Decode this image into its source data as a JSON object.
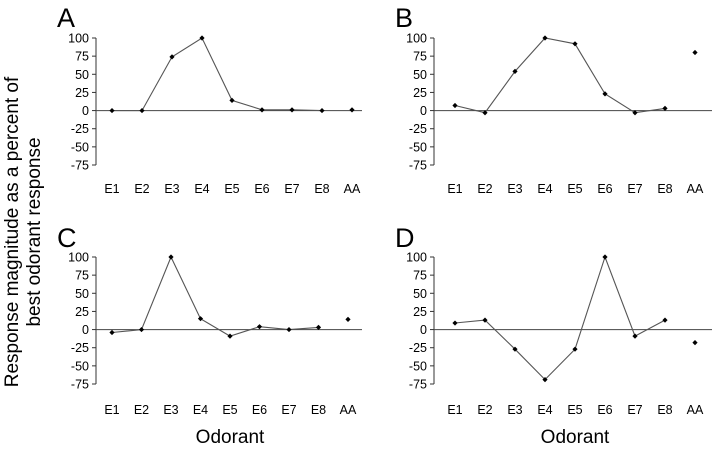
{
  "ylabel_lines": [
    "Response magnitude as a percent of",
    "best odorant response"
  ],
  "chart_data": [
    {
      "type": "line",
      "panel_label": "A",
      "categories": [
        "E1",
        "E2",
        "E3",
        "E4",
        "E5",
        "E6",
        "E7",
        "E8",
        "AA"
      ],
      "yticks": [
        100,
        75,
        50,
        25,
        0,
        -25,
        -50,
        -75
      ],
      "ylim": [
        -75,
        100
      ],
      "xlabel": "",
      "line_values": [
        0,
        0,
        74,
        100,
        14,
        1,
        1,
        0
      ],
      "isolated_points": [
        {
          "category": "AA",
          "value": 1
        }
      ]
    },
    {
      "type": "line",
      "panel_label": "B",
      "categories": [
        "E1",
        "E2",
        "E3",
        "E4",
        "E5",
        "E6",
        "E7",
        "E8",
        "AA"
      ],
      "yticks": [
        100,
        75,
        50,
        25,
        0,
        -25,
        -50,
        -75
      ],
      "ylim": [
        -75,
        100
      ],
      "xlabel": "",
      "line_values": [
        7,
        -3,
        54,
        100,
        92,
        23,
        -3,
        3
      ],
      "isolated_points": [
        {
          "category": "AA",
          "value": 80
        }
      ]
    },
    {
      "type": "line",
      "panel_label": "C",
      "categories": [
        "E1",
        "E2",
        "E3",
        "E4",
        "E5",
        "E6",
        "E7",
        "E8",
        "AA"
      ],
      "yticks": [
        100,
        75,
        50,
        25,
        0,
        -25,
        -50,
        -75
      ],
      "ylim": [
        -75,
        100
      ],
      "xlabel": "Odorant",
      "line_values": [
        -4,
        0,
        100,
        15,
        -9,
        4,
        0,
        3
      ],
      "isolated_points": [
        {
          "category": "AA",
          "value": 14
        }
      ]
    },
    {
      "type": "line",
      "panel_label": "D",
      "categories": [
        "E1",
        "E2",
        "E3",
        "E4",
        "E5",
        "E6",
        "E7",
        "E8",
        "AA"
      ],
      "yticks": [
        100,
        75,
        50,
        25,
        0,
        -25,
        -50,
        -75
      ],
      "ylim": [
        -75,
        100
      ],
      "xlabel": "Odorant",
      "line_values": [
        9,
        13,
        -27,
        -69,
        -27,
        100,
        -9,
        13
      ],
      "isolated_points": [
        {
          "category": "AA",
          "value": -18
        }
      ]
    }
  ]
}
